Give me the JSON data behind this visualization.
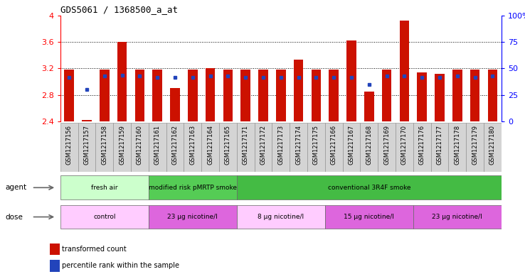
{
  "title": "GDS5061 / 1368500_a_at",
  "samples": [
    "GSM1217156",
    "GSM1217157",
    "GSM1217158",
    "GSM1217159",
    "GSM1217160",
    "GSM1217161",
    "GSM1217162",
    "GSM1217163",
    "GSM1217164",
    "GSM1217165",
    "GSM1217171",
    "GSM1217172",
    "GSM1217173",
    "GSM1217174",
    "GSM1217175",
    "GSM1217166",
    "GSM1217167",
    "GSM1217168",
    "GSM1217169",
    "GSM1217170",
    "GSM1217176",
    "GSM1217177",
    "GSM1217178",
    "GSM1217179",
    "GSM1217180"
  ],
  "bar_values": [
    3.18,
    2.42,
    3.18,
    3.6,
    3.18,
    3.18,
    2.9,
    3.18,
    3.2,
    3.18,
    3.18,
    3.18,
    3.18,
    3.33,
    3.18,
    3.18,
    3.62,
    2.85,
    3.18,
    3.92,
    3.14,
    3.12,
    3.18,
    3.18,
    3.18
  ],
  "blue_values": [
    3.06,
    2.88,
    3.08,
    3.1,
    3.08,
    3.06,
    3.06,
    3.06,
    3.08,
    3.08,
    3.06,
    3.06,
    3.06,
    3.06,
    3.06,
    3.06,
    3.06,
    2.96,
    3.08,
    3.08,
    3.06,
    3.06,
    3.08,
    3.06,
    3.08
  ],
  "ymin": 2.4,
  "ymax": 4.0,
  "yticks": [
    2.4,
    2.8,
    3.2,
    3.6,
    4.0
  ],
  "ytick_labels": [
    "2.4",
    "2.8",
    "3.2",
    "3.6",
    "4"
  ],
  "right_ytick_labels": [
    "0",
    "25",
    "50",
    "75",
    "100%"
  ],
  "dotted_lines": [
    2.8,
    3.2,
    3.6
  ],
  "bar_color": "#cc1100",
  "blue_color": "#2244bb",
  "agent_groups": [
    {
      "label": "fresh air",
      "start": 0,
      "end": 5,
      "color": "#ccffcc"
    },
    {
      "label": "modified risk pMRTP smoke",
      "start": 5,
      "end": 10,
      "color": "#55cc55"
    },
    {
      "label": "conventional 3R4F smoke",
      "start": 10,
      "end": 25,
      "color": "#44bb44"
    }
  ],
  "dose_groups": [
    {
      "label": "control",
      "start": 0,
      "end": 5,
      "color": "#ffccff"
    },
    {
      "label": "23 μg nicotine/l",
      "start": 5,
      "end": 10,
      "color": "#dd66dd"
    },
    {
      "label": "8 μg nicotine/l",
      "start": 10,
      "end": 15,
      "color": "#ffccff"
    },
    {
      "label": "15 μg nicotine/l",
      "start": 15,
      "end": 20,
      "color": "#dd66dd"
    },
    {
      "label": "23 μg nicotine/l",
      "start": 20,
      "end": 25,
      "color": "#dd66dd"
    }
  ],
  "legend_tc": "transformed count",
  "legend_pr": "percentile rank within the sample",
  "bar_width": 0.55
}
